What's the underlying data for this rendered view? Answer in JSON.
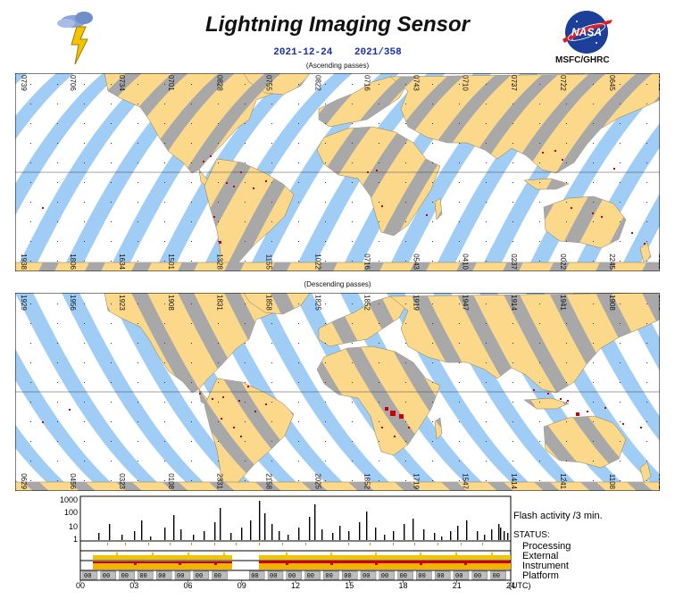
{
  "header": {
    "title": "Lightning Imaging Sensor",
    "date": "2021-12-24",
    "doy": "2021/358",
    "agency": "MSFC/GHRC",
    "logo_text": "NASA",
    "ascending_label": "(Ascending passes)",
    "descending_label": "(Descending passes)"
  },
  "ascending": {
    "top_times": [
      "0739",
      "0706",
      "0734",
      "0701",
      "0828",
      "0755",
      "0822",
      "0716",
      "0743",
      "0710",
      "0737",
      "0722",
      "0645",
      "0712"
    ],
    "bottom_times": [
      "1938",
      "1806",
      "1634",
      "1501",
      "1328",
      "1155",
      "1022",
      "0716",
      "0543",
      "0410",
      "0237",
      "0022",
      "2245",
      "2112"
    ]
  },
  "descending": {
    "top_times": [
      "1929",
      "1956",
      "1923",
      "1908",
      "1831",
      "1858",
      "1825",
      "1852",
      "1919",
      "1947",
      "1914",
      "1941",
      "1908",
      "1801"
    ],
    "bottom_times": [
      "0629",
      "0456",
      "0323",
      "0108",
      "2331",
      "2158",
      "2025",
      "1852",
      "1719",
      "1547",
      "1414",
      "1241",
      "1108",
      "0801"
    ]
  },
  "timeline": {
    "flash_label": "Flash activity /3 min.",
    "status_label": "STATUS:",
    "rows": [
      "Processing",
      "External",
      "Instrument",
      "Platform"
    ],
    "y_ticks": [
      "1000",
      "100",
      "10",
      "1"
    ],
    "x_ticks": [
      "00",
      "03",
      "06",
      "09",
      "12",
      "15",
      "18",
      "21",
      "24"
    ],
    "x_unit": "(UTC)",
    "platform_marker": "00"
  },
  "colors": {
    "land": "#fcd98a",
    "swath": "#9fcdf5",
    "coverage": "#a8a8a8",
    "flash": "#cc0000",
    "title_blue": "#1a2fb0"
  }
}
